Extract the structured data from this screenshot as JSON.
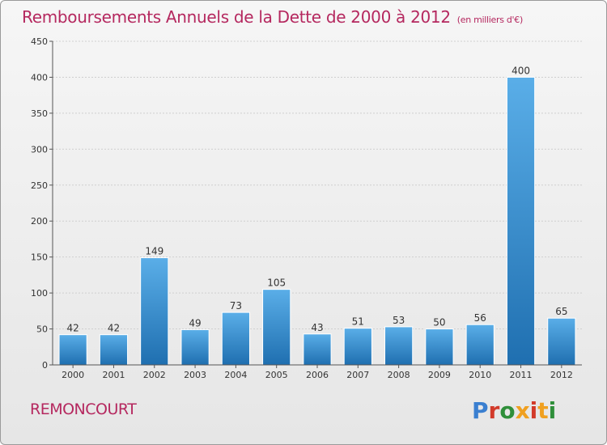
{
  "header": {
    "title": "Remboursements Annuels de la Dette de 2000 à 2012",
    "subtitle": "(en milliers d'€)"
  },
  "footer": {
    "commune": "REMONCOURT",
    "brand": "Proxiti",
    "brand_colors": [
      "#3a7fd0",
      "#d23a2a",
      "#2f8f3a",
      "#f0a020",
      "#d23a2a",
      "#f0a020",
      "#2f8f3a"
    ]
  },
  "colors": {
    "title": "#b5285f",
    "bar_top": "#5aaee8",
    "bar_bottom": "#1f6fb0",
    "grid": "#cfcfcf",
    "axis": "#555555"
  },
  "chart_data": {
    "type": "bar",
    "categories": [
      "2000",
      "2001",
      "2002",
      "2003",
      "2004",
      "2005",
      "2006",
      "2007",
      "2008",
      "2009",
      "2010",
      "2011",
      "2012"
    ],
    "values": [
      42,
      42,
      149,
      49,
      73,
      105,
      43,
      51,
      53,
      50,
      56,
      400,
      65
    ],
    "data_labels": [
      "42",
      "42",
      "149",
      "49",
      "73",
      "105",
      "43",
      "51",
      "53",
      "50",
      "56",
      "400",
      "65"
    ],
    "ylim": [
      0,
      450
    ],
    "yticks": [
      0,
      50,
      100,
      150,
      200,
      250,
      300,
      350,
      400,
      450
    ],
    "grid": true,
    "legend": "none"
  }
}
